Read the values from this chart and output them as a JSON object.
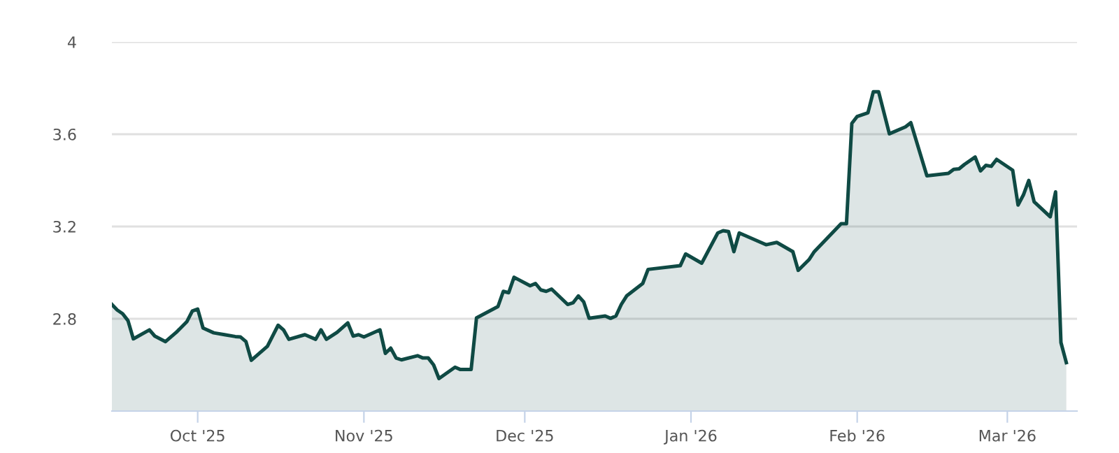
{
  "chart_data": {
    "type": "area",
    "x": [
      "2025-09-15",
      "2025-09-16",
      "2025-09-17",
      "2025-09-18",
      "2025-09-19",
      "2025-09-22",
      "2025-09-23",
      "2025-09-25",
      "2025-09-27",
      "2025-09-29",
      "2025-09-30",
      "2025-10-01",
      "2025-10-02",
      "2025-10-04",
      "2025-10-06",
      "2025-10-08",
      "2025-10-09",
      "2025-10-10",
      "2025-10-11",
      "2025-10-14",
      "2025-10-16",
      "2025-10-17",
      "2025-10-18",
      "2025-10-21",
      "2025-10-23",
      "2025-10-24",
      "2025-10-25",
      "2025-10-27",
      "2025-10-29",
      "2025-10-30",
      "2025-10-31",
      "2025-11-01",
      "2025-11-04",
      "2025-11-05",
      "2025-11-06",
      "2025-11-07",
      "2025-11-08",
      "2025-11-11",
      "2025-11-12",
      "2025-11-13",
      "2025-11-14",
      "2025-11-15",
      "2025-11-18",
      "2025-11-19",
      "2025-11-21",
      "2025-11-22",
      "2025-11-26",
      "2025-11-27",
      "2025-11-28",
      "2025-11-29",
      "2025-12-02",
      "2025-12-03",
      "2025-12-04",
      "2025-12-05",
      "2025-12-06",
      "2025-12-09",
      "2025-12-10",
      "2025-12-11",
      "2025-12-12",
      "2025-12-13",
      "2025-12-16",
      "2025-12-17",
      "2025-12-18",
      "2025-12-19",
      "2025-12-20",
      "2025-12-23",
      "2025-12-24",
      "2025-12-30",
      "2025-12-31",
      "2026-01-03",
      "2026-01-06",
      "2026-01-07",
      "2026-01-08",
      "2026-01-09",
      "2026-01-10",
      "2026-01-15",
      "2026-01-17",
      "2026-01-20",
      "2026-01-21",
      "2026-01-23",
      "2026-01-24",
      "2026-01-29",
      "2026-01-30",
      "2026-01-31",
      "2026-02-01",
      "2026-02-03",
      "2026-02-04",
      "2026-02-05",
      "2026-02-07",
      "2026-02-10",
      "2026-02-11",
      "2026-02-14",
      "2026-02-18",
      "2026-02-19",
      "2026-02-20",
      "2026-02-21",
      "2026-02-23",
      "2026-02-24",
      "2026-02-25",
      "2026-02-26",
      "2026-02-27",
      "2026-03-02",
      "2026-03-03",
      "2026-03-04",
      "2026-03-05",
      "2026-03-06",
      "2026-03-09",
      "2026-03-10",
      "2026-03-11",
      "2026-03-12"
    ],
    "values": [
      2.862,
      2.838,
      2.822,
      2.792,
      2.713,
      2.752,
      2.725,
      2.701,
      2.741,
      2.788,
      2.834,
      2.842,
      2.76,
      2.739,
      2.731,
      2.723,
      2.721,
      2.701,
      2.62,
      2.681,
      2.772,
      2.752,
      2.711,
      2.731,
      2.711,
      2.752,
      2.711,
      2.741,
      2.782,
      2.725,
      2.731,
      2.721,
      2.752,
      2.65,
      2.673,
      2.63,
      2.622,
      2.64,
      2.63,
      2.63,
      2.6,
      2.541,
      2.59,
      2.58,
      2.58,
      2.804,
      2.853,
      2.919,
      2.913,
      2.98,
      2.943,
      2.953,
      2.925,
      2.919,
      2.929,
      2.862,
      2.869,
      2.899,
      2.873,
      2.802,
      2.812,
      2.802,
      2.812,
      2.862,
      2.899,
      2.953,
      3.014,
      3.03,
      3.081,
      3.041,
      3.172,
      3.182,
      3.178,
      3.091,
      3.172,
      3.121,
      3.131,
      3.091,
      3.01,
      3.056,
      3.091,
      3.212,
      3.212,
      3.647,
      3.677,
      3.693,
      3.784,
      3.784,
      3.602,
      3.632,
      3.65,
      3.42,
      3.43,
      3.448,
      3.45,
      3.469,
      3.501,
      3.441,
      3.465,
      3.461,
      3.491,
      3.444,
      3.293,
      3.337,
      3.4,
      3.307,
      3.242,
      3.35,
      2.697,
      2.61
    ],
    "color": "#0f4a44",
    "xlim": [
      "2025-09-15",
      "2026-03-14"
    ],
    "xticks": [
      {
        "value": "2025-10-01",
        "label": "Oct '25"
      },
      {
        "value": "2025-11-01",
        "label": "Nov '25"
      },
      {
        "value": "2025-12-01",
        "label": "Dec '25"
      },
      {
        "value": "2026-01-01",
        "label": "Jan '26"
      },
      {
        "value": "2026-02-01",
        "label": "Feb '26"
      },
      {
        "value": "2026-03-01",
        "label": "Mar '26"
      }
    ],
    "ylim": [
      2.4,
      4
    ],
    "yticks": [
      2.8,
      3.2,
      3.6,
      4
    ],
    "grid": "y"
  }
}
